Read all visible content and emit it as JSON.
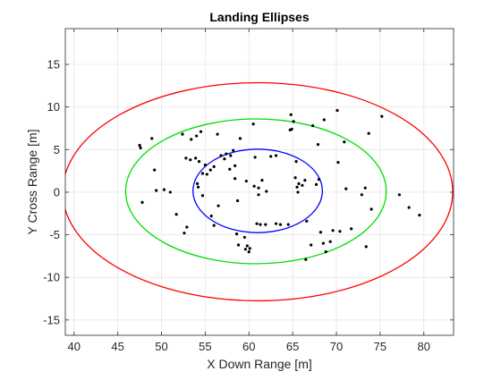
{
  "chart_data": {
    "type": "scatter",
    "title": "Landing Ellipses",
    "xlabel": "X Down Range [m]",
    "ylabel": "Y Cross Range [m]",
    "xlim": [
      39,
      83.4
    ],
    "ylim": [
      -16.8,
      19.2
    ],
    "xticks": [
      40,
      45,
      50,
      55,
      60,
      65,
      70,
      75,
      80
    ],
    "yticks": [
      -15,
      -10,
      -5,
      0,
      5,
      10,
      15
    ],
    "grid": true,
    "colors": {
      "points": "#000000",
      "ellipse_inner": "#0000ff",
      "ellipse_middle": "#00dd00",
      "ellipse_outer": "#ff0000",
      "grid": "#e6e6e6",
      "axes": "#262626"
    },
    "ellipses": [
      {
        "cx": 61,
        "cy": 0.05,
        "rx": 22.3,
        "ry": 12.8,
        "color": "#ff0000"
      },
      {
        "cx": 60.8,
        "cy": 0.1,
        "rx": 14.9,
        "ry": 8.5,
        "color": "#00dd00"
      },
      {
        "cx": 61,
        "cy": 0.15,
        "rx": 7.4,
        "ry": 4.9,
        "color": "#0000ff"
      }
    ],
    "series": [
      {
        "points": [
          [
            47.5,
            5.5
          ],
          [
            47.6,
            5.2
          ],
          [
            47.8,
            -1.2
          ],
          [
            48.9,
            6.3
          ],
          [
            49.2,
            2.6
          ],
          [
            49.4,
            0.2
          ],
          [
            50.3,
            0.3
          ],
          [
            51.0,
            0.0
          ],
          [
            51.7,
            -2.6
          ],
          [
            52.4,
            6.8
          ],
          [
            52.6,
            -4.8
          ],
          [
            52.8,
            4.0
          ],
          [
            52.9,
            -4.1
          ],
          [
            53.3,
            3.8
          ],
          [
            53.4,
            6.2
          ],
          [
            53.9,
            4.0
          ],
          [
            54.0,
            6.6
          ],
          [
            54.1,
            1.0
          ],
          [
            54.2,
            0.6
          ],
          [
            54.3,
            3.6
          ],
          [
            54.5,
            7.1
          ],
          [
            54.7,
            -0.4
          ],
          [
            54.7,
            2.2
          ],
          [
            55.0,
            3.2
          ],
          [
            55.2,
            2.1
          ],
          [
            55.6,
            2.6
          ],
          [
            55.7,
            -2.8
          ],
          [
            56.0,
            -3.9
          ],
          [
            56.0,
            3.0
          ],
          [
            56.4,
            6.8
          ],
          [
            56.5,
            -1.6
          ],
          [
            56.8,
            4.3
          ],
          [
            57.2,
            3.9
          ],
          [
            57.4,
            4.5
          ],
          [
            57.8,
            2.7
          ],
          [
            57.9,
            4.3
          ],
          [
            58.2,
            4.9
          ],
          [
            58.4,
            3.1
          ],
          [
            58.4,
            1.6
          ],
          [
            58.6,
            -4.9
          ],
          [
            58.7,
            -1.0
          ],
          [
            58.8,
            -6.2
          ],
          [
            59.0,
            6.3
          ],
          [
            59.5,
            -5.3
          ],
          [
            59.6,
            -6.7
          ],
          [
            59.7,
            1.3
          ],
          [
            59.8,
            -6.3
          ],
          [
            60.0,
            -7.0
          ],
          [
            60.1,
            -6.6
          ],
          [
            60.5,
            8.0
          ],
          [
            60.6,
            0.7
          ],
          [
            60.7,
            4.1
          ],
          [
            60.9,
            -3.7
          ],
          [
            61.1,
            -0.3
          ],
          [
            61.1,
            0.5
          ],
          [
            61.3,
            -3.8
          ],
          [
            61.5,
            1.4
          ],
          [
            61.9,
            -3.8
          ],
          [
            62.0,
            0.1
          ],
          [
            62.5,
            4.2
          ],
          [
            63.1,
            4.3
          ],
          [
            63.1,
            -3.7
          ],
          [
            63.6,
            -3.8
          ],
          [
            64.5,
            -3.8
          ],
          [
            64.8,
            9.1
          ],
          [
            64.7,
            7.3
          ],
          [
            64.9,
            7.4
          ],
          [
            65.1,
            8.3
          ],
          [
            65.3,
            1.7
          ],
          [
            65.4,
            3.6
          ],
          [
            65.5,
            0.6
          ],
          [
            65.6,
            0.0
          ],
          [
            65.7,
            1.0
          ],
          [
            66.1,
            0.8
          ],
          [
            66.4,
            1.4
          ],
          [
            66.5,
            -7.9
          ],
          [
            66.6,
            -3.4
          ],
          [
            67.1,
            -6.2
          ],
          [
            67.3,
            7.8
          ],
          [
            67.7,
            0.9
          ],
          [
            67.9,
            5.6
          ],
          [
            68.0,
            1.5
          ],
          [
            68.2,
            -4.7
          ],
          [
            68.5,
            -6.0
          ],
          [
            68.6,
            8.5
          ],
          [
            68.8,
            -7.0
          ],
          [
            69.3,
            -5.8
          ],
          [
            69.6,
            -4.5
          ],
          [
            70.1,
            9.6
          ],
          [
            70.2,
            3.5
          ],
          [
            70.4,
            -4.6
          ],
          [
            70.9,
            5.9
          ],
          [
            71.1,
            0.4
          ],
          [
            71.7,
            -4.3
          ],
          [
            72.9,
            -0.3
          ],
          [
            73.3,
            0.5
          ],
          [
            73.4,
            -6.4
          ],
          [
            73.7,
            6.9
          ],
          [
            74.0,
            -2.0
          ],
          [
            75.2,
            8.9
          ],
          [
            77.2,
            -0.3
          ],
          [
            78.3,
            -1.8
          ],
          [
            79.5,
            -2.7
          ]
        ]
      }
    ]
  }
}
